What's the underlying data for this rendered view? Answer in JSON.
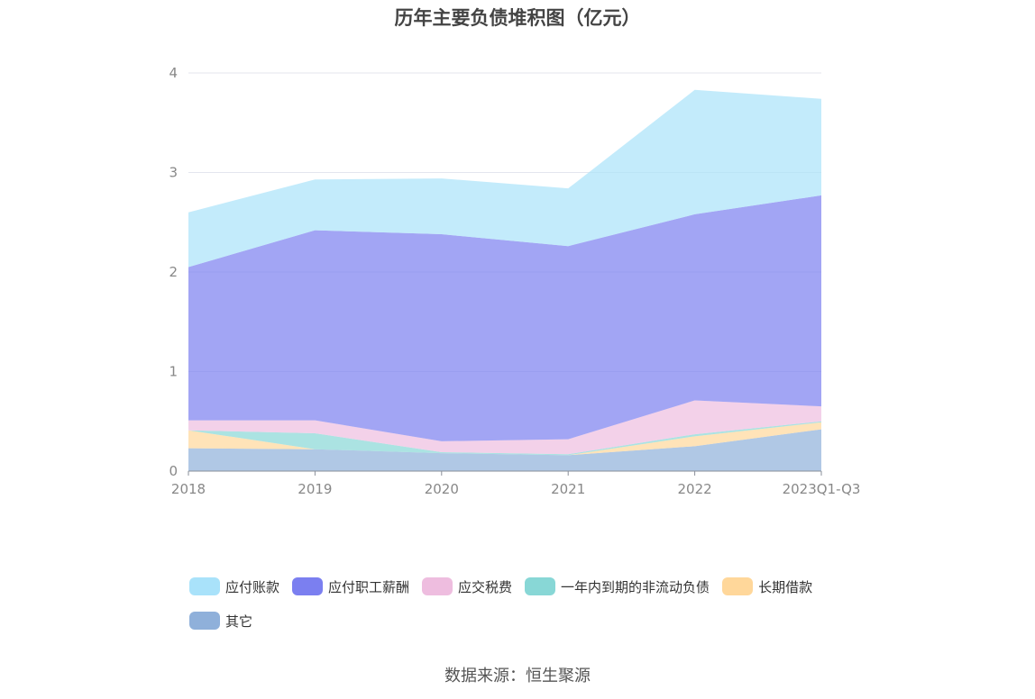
{
  "chart_data": {
    "type": "area",
    "stacked": true,
    "title": "历年主要负债堆积图（亿元）",
    "categories": [
      "2018",
      "2019",
      "2020",
      "2021",
      "2022",
      "2023Q1-Q3"
    ],
    "ylim": [
      0,
      4
    ],
    "yticks": [
      "0",
      "1",
      "2",
      "3",
      "4"
    ],
    "grid": true,
    "legend_position": "bottom",
    "series": [
      {
        "name": "其它",
        "color": "#8fb0da",
        "values": [
          0.23,
          0.22,
          0.18,
          0.16,
          0.25,
          0.42
        ]
      },
      {
        "name": "长期借款",
        "color": "#ffd79a",
        "values": [
          0.18,
          0.0,
          0.0,
          0.0,
          0.1,
          0.07
        ]
      },
      {
        "name": "一年内到期的非流动负债",
        "color": "#88d7d6",
        "values": [
          0.0,
          0.16,
          0.01,
          0.01,
          0.02,
          0.01
        ]
      },
      {
        "name": "应交税费",
        "color": "#eebddf",
        "values": [
          0.1,
          0.13,
          0.11,
          0.15,
          0.34,
          0.15
        ]
      },
      {
        "name": "应付职工薪酬",
        "color": "#7b7ff0",
        "values": [
          1.54,
          1.91,
          2.08,
          1.94,
          1.87,
          2.12
        ]
      },
      {
        "name": "应付账款",
        "color": "#a9e2fa",
        "values": [
          0.55,
          0.51,
          0.56,
          0.58,
          1.25,
          0.97
        ]
      }
    ]
  },
  "legend_order": [
    "应付账款",
    "应付职工薪酬",
    "应交税费",
    "一年内到期的非流动负债",
    "长期借款",
    "其它"
  ],
  "source_text": "数据来源：恒生聚源"
}
